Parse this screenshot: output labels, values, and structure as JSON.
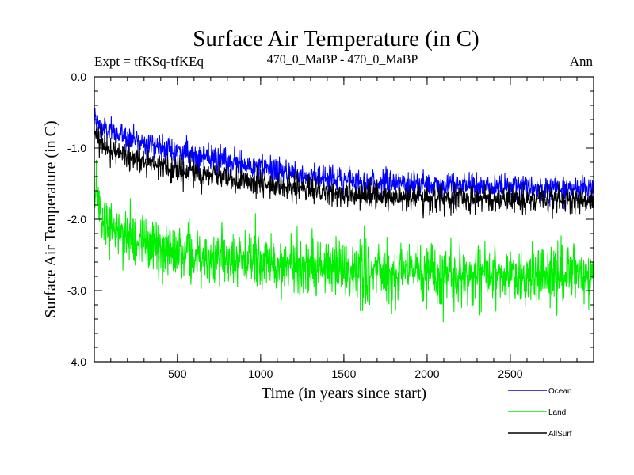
{
  "chart_data": {
    "type": "line",
    "title": "Surface Air Temperature (in C)",
    "subtitle_left": "Expt = tfKSq-tfKEq",
    "subtitle_center": "470_0_MaBP - 470_0_MaBP",
    "subtitle_right": "Ann",
    "xlabel": "Time (in years since start)",
    "ylabel": "Surface Air Temperature (in C)",
    "xlim": [
      1,
      3000
    ],
    "ylim": [
      -4.0,
      0.0
    ],
    "x_ticks": [
      500,
      1000,
      1500,
      2000,
      2500
    ],
    "x_tick_labels": [
      "500",
      "1000",
      "1500",
      "2000",
      "2500"
    ],
    "y_ticks": [
      0.0,
      -1.0,
      -2.0,
      -3.0,
      -4.0
    ],
    "y_tick_labels": [
      "0.0",
      "-1.0",
      "-2.0",
      "-3.0",
      "-4.0"
    ],
    "legend_position": "bottom-right",
    "series": [
      {
        "name": "Ocean",
        "color": "#0000ff",
        "noise": 0.09,
        "trend_x": [
          1,
          50,
          100,
          200,
          400,
          600,
          800,
          1000,
          1200,
          1400,
          1600,
          1800,
          2000,
          2200,
          2400,
          2600,
          2800,
          3000
        ],
        "trend_y": [
          -0.6,
          -0.72,
          -0.78,
          -0.85,
          -0.98,
          -1.1,
          -1.2,
          -1.28,
          -1.35,
          -1.42,
          -1.47,
          -1.5,
          -1.52,
          -1.53,
          -1.54,
          -1.55,
          -1.55,
          -1.56
        ]
      },
      {
        "name": "Land",
        "color": "#00ee00",
        "noise": 0.2,
        "trend_x": [
          1,
          50,
          100,
          200,
          400,
          600,
          800,
          1000,
          1200,
          1400,
          1600,
          1800,
          2000,
          2200,
          2400,
          2600,
          2800,
          3000
        ],
        "trend_y": [
          -1.6,
          -1.95,
          -2.1,
          -2.25,
          -2.4,
          -2.5,
          -2.55,
          -2.6,
          -2.65,
          -2.7,
          -2.72,
          -2.75,
          -2.76,
          -2.77,
          -2.78,
          -2.78,
          -2.79,
          -2.8
        ]
      },
      {
        "name": "AllSurf",
        "color": "#000000",
        "noise": 0.09,
        "trend_x": [
          1,
          50,
          100,
          200,
          400,
          600,
          800,
          1000,
          1200,
          1400,
          1600,
          1800,
          2000,
          2200,
          2400,
          2600,
          2800,
          3000
        ],
        "trend_y": [
          -0.8,
          -0.95,
          -1.02,
          -1.12,
          -1.25,
          -1.35,
          -1.43,
          -1.5,
          -1.56,
          -1.62,
          -1.66,
          -1.68,
          -1.7,
          -1.71,
          -1.72,
          -1.72,
          -1.73,
          -1.73
        ]
      }
    ]
  }
}
